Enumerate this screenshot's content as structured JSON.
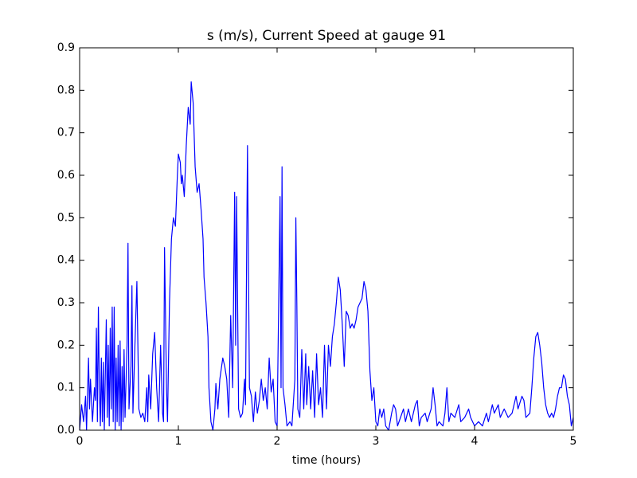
{
  "chart_data": {
    "type": "line",
    "title": "s (m/s), Current Speed at gauge 91",
    "xlabel": "time (hours)",
    "xlim": [
      0,
      5
    ],
    "ylim": [
      0,
      0.9
    ],
    "xticks": [
      0,
      1,
      2,
      3,
      4,
      5
    ],
    "yticks": [
      {
        "value": 0,
        "label": "0.0"
      },
      {
        "value": 0.1,
        "label": "0.1"
      },
      {
        "value": 0.2,
        "label": "0.2"
      },
      {
        "value": 0.3,
        "label": "0.3"
      },
      {
        "value": 0.4,
        "label": "0.4"
      },
      {
        "value": 0.5,
        "label": "0.5"
      },
      {
        "value": 0.6,
        "label": "0.6"
      },
      {
        "value": 0.7,
        "label": "0.7"
      },
      {
        "value": 0.8,
        "label": "0.8"
      },
      {
        "value": 0.9,
        "label": "0.9"
      }
    ],
    "grid": false,
    "hlines": [
      {
        "value": 0,
        "color": "#000000",
        "style": "dashed"
      }
    ],
    "x": [
      0.0,
      0.02,
      0.04,
      0.06,
      0.07,
      0.09,
      0.1,
      0.11,
      0.13,
      0.15,
      0.16,
      0.17,
      0.18,
      0.19,
      0.2,
      0.21,
      0.22,
      0.23,
      0.24,
      0.25,
      0.27,
      0.28,
      0.29,
      0.3,
      0.31,
      0.32,
      0.33,
      0.34,
      0.35,
      0.36,
      0.37,
      0.38,
      0.39,
      0.4,
      0.41,
      0.42,
      0.43,
      0.44,
      0.45,
      0.46,
      0.48,
      0.49,
      0.5,
      0.52,
      0.53,
      0.54,
      0.56,
      0.58,
      0.6,
      0.62,
      0.64,
      0.66,
      0.68,
      0.69,
      0.7,
      0.72,
      0.74,
      0.76,
      0.78,
      0.8,
      0.82,
      0.84,
      0.85,
      0.86,
      0.88,
      0.89,
      0.91,
      0.93,
      0.95,
      0.97,
      0.99,
      1.0,
      1.02,
      1.03,
      1.04,
      1.06,
      1.08,
      1.1,
      1.12,
      1.13,
      1.15,
      1.17,
      1.19,
      1.21,
      1.23,
      1.25,
      1.26,
      1.28,
      1.3,
      1.31,
      1.33,
      1.35,
      1.37,
      1.38,
      1.4,
      1.42,
      1.45,
      1.47,
      1.49,
      1.51,
      1.53,
      1.55,
      1.57,
      1.58,
      1.59,
      1.61,
      1.63,
      1.65,
      1.67,
      1.68,
      1.7,
      1.72,
      1.74,
      1.76,
      1.78,
      1.8,
      1.82,
      1.84,
      1.86,
      1.88,
      1.9,
      1.92,
      1.94,
      1.96,
      1.98,
      2.0,
      2.03,
      2.04,
      2.05,
      2.06,
      2.08,
      2.1,
      2.13,
      2.15,
      2.18,
      2.19,
      2.2,
      2.21,
      2.23,
      2.25,
      2.27,
      2.29,
      2.3,
      2.32,
      2.34,
      2.36,
      2.38,
      2.4,
      2.42,
      2.44,
      2.46,
      2.48,
      2.5,
      2.52,
      2.54,
      2.56,
      2.58,
      2.6,
      2.62,
      2.64,
      2.66,
      2.68,
      2.7,
      2.72,
      2.74,
      2.76,
      2.78,
      2.8,
      2.82,
      2.84,
      2.86,
      2.88,
      2.9,
      2.92,
      2.94,
      2.96,
      2.98,
      3.0,
      3.02,
      3.04,
      3.06,
      3.08,
      3.1,
      3.13,
      3.16,
      3.18,
      3.2,
      3.22,
      3.25,
      3.28,
      3.3,
      3.33,
      3.36,
      3.4,
      3.42,
      3.44,
      3.46,
      3.5,
      3.52,
      3.56,
      3.58,
      3.6,
      3.62,
      3.64,
      3.68,
      3.7,
      3.72,
      3.74,
      3.76,
      3.8,
      3.84,
      3.86,
      3.9,
      3.94,
      3.96,
      4.0,
      4.04,
      4.08,
      4.12,
      4.14,
      4.18,
      4.2,
      4.24,
      4.26,
      4.3,
      4.34,
      4.38,
      4.42,
      4.44,
      4.48,
      4.5,
      4.52,
      4.56,
      4.58,
      4.6,
      4.62,
      4.64,
      4.66,
      4.68,
      4.7,
      4.72,
      4.74,
      4.76,
      4.78,
      4.8,
      4.82,
      4.84,
      4.86,
      4.88,
      4.9,
      4.92,
      4.94,
      4.96,
      4.98,
      5.0
    ],
    "series": [
      {
        "color": "#0000ff",
        "values": [
          0.0,
          0.06,
          0.02,
          0.08,
          0.0,
          0.17,
          0.05,
          0.12,
          0.02,
          0.1,
          0.07,
          0.24,
          0.02,
          0.29,
          0.1,
          0.01,
          0.17,
          0.02,
          0.16,
          0.0,
          0.26,
          0.03,
          0.2,
          0.01,
          0.24,
          0.05,
          0.29,
          0.02,
          0.29,
          0.0,
          0.17,
          0.02,
          0.2,
          0.01,
          0.21,
          0.0,
          0.15,
          0.02,
          0.19,
          0.03,
          0.2,
          0.44,
          0.05,
          0.15,
          0.34,
          0.04,
          0.2,
          0.35,
          0.05,
          0.03,
          0.04,
          0.02,
          0.1,
          0.02,
          0.13,
          0.05,
          0.18,
          0.23,
          0.1,
          0.02,
          0.2,
          0.04,
          0.02,
          0.43,
          0.1,
          0.02,
          0.3,
          0.45,
          0.5,
          0.48,
          0.6,
          0.65,
          0.63,
          0.58,
          0.6,
          0.55,
          0.67,
          0.76,
          0.72,
          0.82,
          0.77,
          0.62,
          0.56,
          0.58,
          0.52,
          0.45,
          0.36,
          0.3,
          0.22,
          0.1,
          0.02,
          0.0,
          0.05,
          0.11,
          0.05,
          0.12,
          0.17,
          0.15,
          0.12,
          0.03,
          0.27,
          0.1,
          0.56,
          0.2,
          0.55,
          0.05,
          0.03,
          0.04,
          0.12,
          0.06,
          0.67,
          0.1,
          0.08,
          0.02,
          0.09,
          0.04,
          0.07,
          0.12,
          0.07,
          0.1,
          0.05,
          0.17,
          0.09,
          0.12,
          0.02,
          0.01,
          0.55,
          0.1,
          0.62,
          0.1,
          0.06,
          0.01,
          0.02,
          0.01,
          0.12,
          0.5,
          0.3,
          0.05,
          0.03,
          0.19,
          0.05,
          0.18,
          0.06,
          0.15,
          0.05,
          0.14,
          0.03,
          0.18,
          0.06,
          0.1,
          0.03,
          0.2,
          0.05,
          0.2,
          0.15,
          0.22,
          0.25,
          0.3,
          0.36,
          0.33,
          0.25,
          0.15,
          0.28,
          0.27,
          0.24,
          0.25,
          0.24,
          0.26,
          0.29,
          0.3,
          0.31,
          0.35,
          0.33,
          0.28,
          0.14,
          0.07,
          0.1,
          0.02,
          0.01,
          0.05,
          0.03,
          0.05,
          0.01,
          0.0,
          0.04,
          0.06,
          0.05,
          0.01,
          0.03,
          0.05,
          0.02,
          0.05,
          0.02,
          0.06,
          0.07,
          0.01,
          0.03,
          0.04,
          0.02,
          0.05,
          0.1,
          0.06,
          0.01,
          0.02,
          0.01,
          0.04,
          0.1,
          0.02,
          0.04,
          0.03,
          0.06,
          0.02,
          0.03,
          0.05,
          0.03,
          0.01,
          0.02,
          0.01,
          0.04,
          0.02,
          0.06,
          0.04,
          0.06,
          0.03,
          0.05,
          0.03,
          0.04,
          0.08,
          0.05,
          0.08,
          0.07,
          0.03,
          0.04,
          0.1,
          0.17,
          0.22,
          0.23,
          0.2,
          0.16,
          0.1,
          0.06,
          0.04,
          0.03,
          0.04,
          0.03,
          0.05,
          0.08,
          0.1,
          0.1,
          0.13,
          0.12,
          0.08,
          0.06,
          0.01,
          0.03
        ]
      }
    ]
  }
}
